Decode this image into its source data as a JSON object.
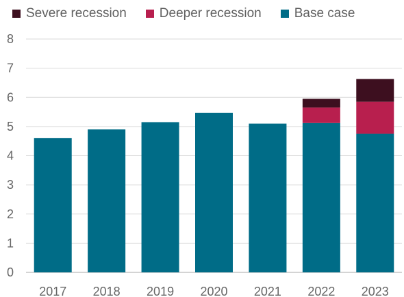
{
  "legend": [
    {
      "label": "Severe recession",
      "color": "#3d0f1f"
    },
    {
      "label": "Deeper recession",
      "color": "#b81f4e"
    },
    {
      "label": "Base case",
      "color": "#006c87"
    }
  ],
  "chart_data": {
    "type": "bar",
    "stacked": true,
    "categories": [
      "2017",
      "2018",
      "2019",
      "2020",
      "2021",
      "2022",
      "2023"
    ],
    "series": [
      {
        "name": "Base case",
        "values": [
          4.6,
          4.9,
          5.15,
          5.47,
          5.1,
          5.12,
          4.75
        ],
        "color": "#006c87"
      },
      {
        "name": "Deeper recession",
        "values": [
          0,
          0,
          0,
          0,
          0,
          0.53,
          1.1
        ],
        "color": "#b81f4e"
      },
      {
        "name": "Severe recession",
        "values": [
          0,
          0,
          0,
          0,
          0,
          0.3,
          0.78
        ],
        "color": "#3d0f1f"
      }
    ],
    "ylim": [
      0,
      8
    ],
    "yticks": [
      0,
      1,
      2,
      3,
      4,
      5,
      6,
      7,
      8
    ],
    "grid": true,
    "legend_position": "top-left",
    "title": "",
    "xlabel": "",
    "ylabel": ""
  }
}
